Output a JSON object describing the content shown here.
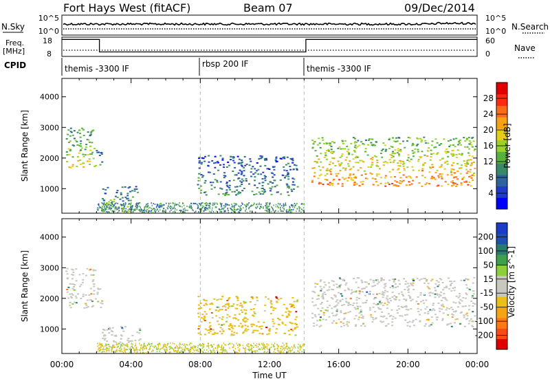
{
  "header": {
    "site": "Fort Hays West (fitACF)",
    "beam": "Beam 07",
    "date": "09/Dec/2014"
  },
  "labels": {
    "nsky": "N.Sky",
    "nsearch": "N.Search",
    "freq_line1": "Freq.",
    "freq_line2": "[MHz]",
    "nave": "Nave",
    "cpid": "CPID",
    "xlabel": "Time UT"
  },
  "noise_panel": {
    "left_ticks": [
      "10^5",
      "10^0"
    ],
    "right_ticks": [
      "10^5",
      "10^0"
    ]
  },
  "freq_panel": {
    "left_ticks": [
      "18",
      "8"
    ],
    "right_ticks": [
      "60",
      "0"
    ],
    "freq_steps": [
      {
        "t0": 0.0,
        "t1": 2.17,
        "mhz": 17.5
      },
      {
        "t0": 2.17,
        "t1": 14.1,
        "mhz": 10.5
      },
      {
        "t0": 14.1,
        "t1": 24.0,
        "mhz": 17.5
      }
    ]
  },
  "cpid_segments": [
    {
      "label": "themis -3300 IF",
      "start_hour": 0.0
    },
    {
      "label": "rbsp 200 IF",
      "start_hour": 8.0
    },
    {
      "label": "themis -3300 IF",
      "start_hour": 14.0
    }
  ],
  "chart_data": [
    {
      "type": "heatmap",
      "title": "",
      "xlabel": "Time UT",
      "ylabel": "Slant Range [km]",
      "xlim": [
        0,
        24
      ],
      "ylim": [
        200,
        4600
      ],
      "x_ticks": [
        "00:00",
        "04:00",
        "08:00",
        "12:00",
        "16:00",
        "20:00",
        "00:00"
      ],
      "y_ticks": [
        1000,
        2000,
        3000,
        4000
      ],
      "colorbar": {
        "label": "Power [dB]",
        "ticks": [
          "4",
          "8",
          "12",
          "16",
          "20",
          "24",
          "28"
        ],
        "range": [
          0,
          30
        ],
        "colors": [
          "#0000ff",
          "#1e3cc8",
          "#2f63a0",
          "#3a8a6a",
          "#55b23c",
          "#9ad12a",
          "#e6cd1a",
          "#f7a216",
          "#ff6a14",
          "#ff2a10",
          "#e00000"
        ]
      },
      "echo_regions": [
        {
          "t0": 0.2,
          "t1": 1.9,
          "r0": 1700,
          "r1": 3000,
          "level": 14
        },
        {
          "t0": 1.9,
          "t1": 2.3,
          "r0": 1700,
          "r1": 2400,
          "level": 8
        },
        {
          "t0": 2.3,
          "t1": 4.5,
          "r0": 250,
          "r1": 1100,
          "level": 10
        },
        {
          "t0": 7.8,
          "t1": 13.6,
          "r0": 800,
          "r1": 2100,
          "level": 7
        },
        {
          "t0": 14.4,
          "t1": 23.9,
          "r0": 1100,
          "r1": 2700,
          "level": 18
        }
      ]
    },
    {
      "type": "heatmap",
      "title": "",
      "xlabel": "Time UT",
      "ylabel": "Slant Range [km]",
      "xlim": [
        0,
        24
      ],
      "ylim": [
        200,
        4600
      ],
      "x_ticks": [
        "00:00",
        "04:00",
        "08:00",
        "12:00",
        "16:00",
        "20:00",
        "00:00"
      ],
      "y_ticks": [
        1000,
        2000,
        3000,
        4000
      ],
      "colorbar": {
        "label": "Velocity [m s^-1]",
        "ticks": [
          "200",
          "100",
          "50",
          "15",
          "-15",
          "-50",
          "-100",
          "-200"
        ],
        "range": [
          -250,
          250
        ],
        "colors": [
          "#e00000",
          "#ff4a14",
          "#ff7a14",
          "#f4a516",
          "#e9c01a",
          "#c8c8c0",
          "#c8c8c0",
          "#8ccf3c",
          "#3ea04a",
          "#2a7a70",
          "#1f4fb0",
          "#1c3cc8"
        ]
      },
      "echo_regions": [
        {
          "t0": 0.2,
          "t1": 1.9,
          "r0": 1700,
          "r1": 3000,
          "velocity": 0
        },
        {
          "t0": 1.9,
          "t1": 2.3,
          "r0": 1700,
          "r1": 2400,
          "velocity": -40
        },
        {
          "t0": 2.3,
          "t1": 4.5,
          "r0": 250,
          "r1": 1100,
          "velocity": 0
        },
        {
          "t0": 7.8,
          "t1": 13.6,
          "r0": 800,
          "r1": 2100,
          "velocity": -60
        },
        {
          "t0": 14.4,
          "t1": 23.9,
          "r0": 1100,
          "r1": 2700,
          "velocity": 0
        }
      ]
    }
  ]
}
